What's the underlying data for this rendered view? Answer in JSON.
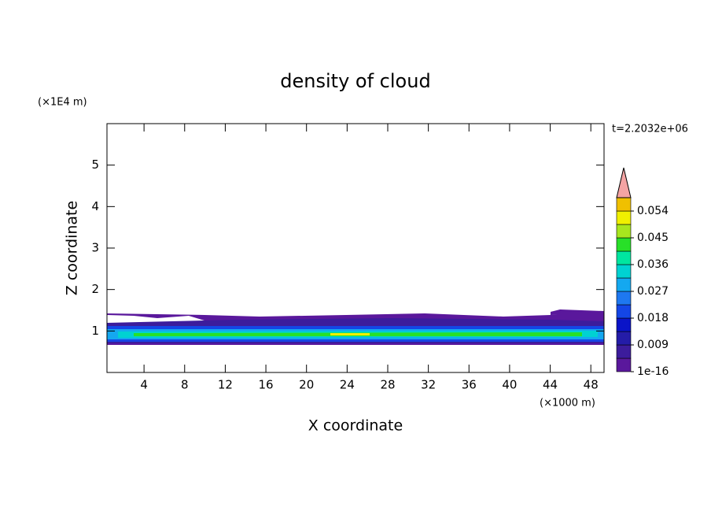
{
  "chart_data": {
    "type": "contour",
    "title": "density of cloud",
    "x_label": "X coordinate",
    "y_label": "Z coordinate",
    "x_unit": "(×1000 m)",
    "y_unit": "(×1E4 m)",
    "time_label": "t=2.2032e+06",
    "xlim": [
      0.35,
      49.3
    ],
    "xticks": [
      4,
      8,
      12,
      16,
      20,
      24,
      28,
      32,
      36,
      40,
      44,
      48
    ],
    "ylim": [
      0,
      6
    ],
    "yticks": [
      1,
      2,
      3,
      4,
      5
    ],
    "colorbar": {
      "clim": [
        0,
        0.0585
      ],
      "ticks": [
        {
          "value": 1e-16,
          "label": "1e-16"
        },
        0.009,
        0.018,
        0.027,
        0.036,
        0.045,
        0.054
      ],
      "colors": [
        "#5a189c",
        "#3c1c9c",
        "#241ca8",
        "#0a14c8",
        "#1446e6",
        "#1e78f0",
        "#14a8f0",
        "#00d2d2",
        "#00e6a0",
        "#28e028",
        "#a8e61e",
        "#f0f000",
        "#f0c000",
        "#f08c00",
        "#f04a00",
        "#e01414"
      ],
      "overflow_color": "#f4a4a4"
    }
  }
}
